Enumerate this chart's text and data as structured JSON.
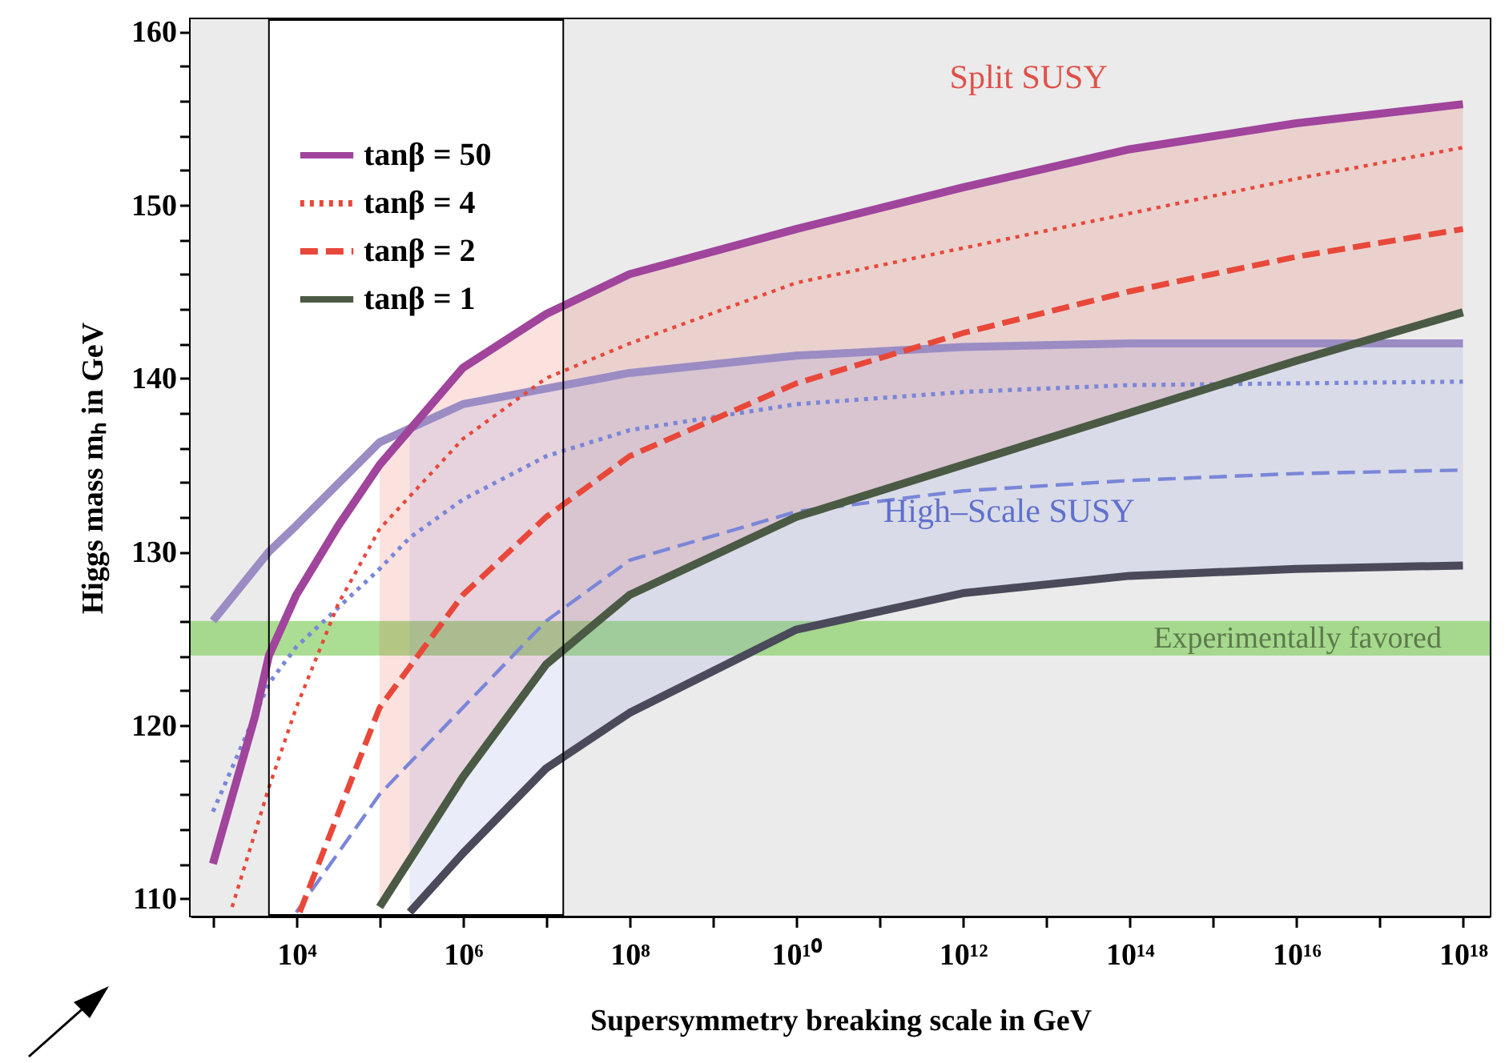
{
  "chart_data": {
    "type": "line",
    "xlabel": "Supersymmetry breaking scale in GeV",
    "ylabel": "Higgs mass mₕ in GeV",
    "log": "x",
    "xlim": [
      540,
      2.1e+18
    ],
    "ylim": [
      109,
      160.7
    ],
    "xticks": [
      {
        "value": 1000.0,
        "label": null
      },
      {
        "value": 10000.0,
        "label": "10⁴"
      },
      {
        "value": 100000.0,
        "label": null
      },
      {
        "value": 1000000.0,
        "label": "10⁶"
      },
      {
        "value": 10000000.0,
        "label": null
      },
      {
        "value": 100000000.0,
        "label": "10⁸"
      },
      {
        "value": 1000000000.0,
        "label": null
      },
      {
        "value": 10000000000.0,
        "label": "10¹⁰"
      },
      {
        "value": 100000000000.0,
        "label": null
      },
      {
        "value": 1000000000000.0,
        "label": "10¹²"
      },
      {
        "value": 10000000000000.0,
        "label": null
      },
      {
        "value": 100000000000000.0,
        "label": "10¹⁴"
      },
      {
        "value": 1000000000000000.0,
        "label": null
      },
      {
        "value": 1e+16,
        "label": "10¹⁶"
      },
      {
        "value": 1e+17,
        "label": null
      },
      {
        "value": 1e+18,
        "label": "10¹⁸"
      }
    ],
    "yticks": [
      110,
      {
        "value": 112,
        "label": null
      },
      {
        "value": 114,
        "label": null
      },
      {
        "value": 116,
        "label": null
      },
      {
        "value": 118,
        "label": null
      },
      120,
      {
        "value": 122,
        "label": null
      },
      {
        "value": 124,
        "label": null
      },
      {
        "value": 126,
        "label": null
      },
      {
        "value": 128,
        "label": null
      },
      130,
      {
        "value": 132,
        "label": null
      },
      {
        "value": 134,
        "label": null
      },
      {
        "value": 136,
        "label": null
      },
      {
        "value": 138,
        "label": null
      },
      140,
      {
        "value": 142,
        "label": null
      },
      {
        "value": 144,
        "label": null
      },
      {
        "value": 146,
        "label": null
      },
      {
        "value": 148,
        "label": null
      },
      150,
      {
        "value": 152,
        "label": null
      },
      {
        "value": 154,
        "label": null
      },
      {
        "value": 156,
        "label": null
      },
      {
        "value": 158,
        "label": null
      },
      160
    ],
    "legend": "top left",
    "series": [
      {
        "name": "tanβ = 50",
        "color": "#a0449c",
        "line_style": "solid",
        "x": [
          1000.0,
          3200.0,
          4700.0,
          10000.0,
          32000.0,
          100000.0,
          1000000.0,
          10000000.0,
          100000000.0,
          10000000000.0,
          1000000000000.0,
          100000000000000.0,
          1e+16,
          1e+18
        ],
        "values": [
          112,
          120.5,
          124,
          127.5,
          131.5,
          135,
          140.6,
          143.7,
          146,
          148.6,
          151,
          153.2,
          154.7,
          155.8
        ]
      },
      {
        "name": "tanβ = 4",
        "color": "#e8483a",
        "line_style": "dotted",
        "x": [
          1700.0,
          4700.0,
          10000.0,
          32000.0,
          100000.0,
          1000000.0,
          10000000.0,
          100000000.0,
          10000000000.0,
          1000000000000.0,
          100000000000000.0,
          1e+16,
          1e+18
        ],
        "values": [
          109.5,
          116.4,
          121,
          127,
          131.3,
          136.5,
          140,
          142,
          145.5,
          147.5,
          149.5,
          151.5,
          153.3
        ],
        "lower": [
          null,
          null,
          null,
          null,
          109.5,
          117,
          123.5,
          127.5,
          132,
          135,
          138,
          141,
          143.8
        ],
        "upper": [
          null,
          null,
          null,
          null,
          135,
          140.6,
          143.7,
          146,
          148.6,
          151,
          153.2,
          154.7,
          155.8
        ]
      },
      {
        "name": "tanβ = 2",
        "color": "#e8483a",
        "line_style": "dashed",
        "x": [
          11000.0,
          100000.0,
          1000000.0,
          10000000.0,
          100000000.0,
          10000000000.0,
          1000000000000.0,
          100000000000000.0,
          1e+16,
          1e+18
        ],
        "values": [
          109.2,
          121,
          127.5,
          132,
          135.5,
          139.7,
          142.6,
          145,
          147,
          148.6
        ]
      },
      {
        "name": "tanβ = 1",
        "color": "#4a5a44",
        "line_style": "solid",
        "x": [
          100000.0,
          1000000.0,
          10000000.0,
          100000000.0,
          10000000000.0,
          1000000000000.0,
          100000000000000.0,
          1e+16,
          1e+18
        ],
        "values": [
          109.5,
          117,
          123.5,
          127.5,
          132,
          135,
          138,
          141,
          143.8
        ]
      },
      {
        "color": "#9b8cc4",
        "line_style": "solid",
        "x": [
          1000.0,
          4700.0,
          10000.0,
          100000.0,
          1000000.0,
          10000000.0,
          100000000.0,
          10000000000.0,
          1000000000000.0,
          100000000000000.0,
          1e+16,
          1e+18
        ],
        "values": [
          126,
          130,
          131.5,
          136.3,
          138.5,
          139.4,
          140.3,
          141.3,
          141.8,
          142,
          142,
          142
        ]
      },
      {
        "color": "#7a86d8",
        "line_style": "dotted",
        "x": [
          1000.0,
          4700.0,
          10000.0,
          100000.0,
          230000.0,
          1000000.0,
          10000000.0,
          100000000.0,
          10000000000.0,
          1000000000000.0,
          100000000000000.0,
          1e+16,
          1e+18
        ],
        "values": [
          115,
          122.4,
          124.5,
          129,
          130.8,
          133,
          135.5,
          137,
          138.5,
          139.2,
          139.6,
          139.7,
          139.8
        ],
        "lower": [
          null,
          null,
          null,
          null,
          109.2,
          112.6,
          117.5,
          120.7,
          125.5,
          127.6,
          128.6,
          129,
          129.2
        ],
        "upper": [
          null,
          null,
          null,
          null,
          137,
          138.5,
          139.4,
          140.3,
          141.3,
          141.8,
          142,
          142,
          142
        ]
      },
      {
        "color": "#7a86d8",
        "line_style": "dashed",
        "x": [
          10000.0,
          100000.0,
          1000000.0,
          10000000.0,
          100000000.0,
          10000000000.0,
          1000000000000.0,
          100000000000000.0,
          1e+16,
          1e+18
        ],
        "values": [
          109.2,
          116,
          121,
          126,
          129.5,
          132.3,
          133.5,
          134.1,
          134.5,
          134.7
        ]
      },
      {
        "color": "#4a4a5a",
        "line_style": "solid",
        "x": [
          230000.0,
          1000000.0,
          10000000.0,
          100000000.0,
          10000000000.0,
          1000000000000.0,
          100000000000000.0,
          1e+16,
          1e+18
        ],
        "values": [
          109.2,
          112.6,
          117.5,
          120.7,
          125.5,
          127.6,
          128.6,
          129,
          129.2
        ]
      }
    ],
    "bands": [
      {
        "axis": "x",
        "from": 540,
        "to": 4700.0,
        "color": "#ebebeb"
      },
      {
        "axis": "x",
        "from": 16000000.0,
        "to": 2.1e+18,
        "color": "#ebebeb"
      },
      {
        "axis": "y",
        "from": 124,
        "to": 126,
        "label": "Experimentally favored",
        "color": "#8fd36f"
      }
    ],
    "ref_lines": [
      {
        "axis": "x",
        "value": 4700.0
      },
      {
        "axis": "x",
        "value": 16000000.0
      }
    ],
    "annotations": [
      "Split SUSY",
      "High–Scale SUSY"
    ]
  }
}
